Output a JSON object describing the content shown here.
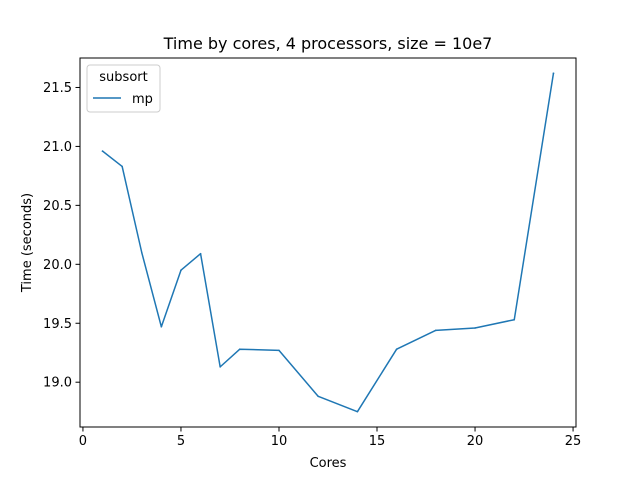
{
  "chart_data": {
    "type": "line",
    "title": "Time by cores, 4 processors, size = 10e7",
    "xlabel": "Cores",
    "ylabel": "Time (seconds)",
    "xlim": [
      -0.15,
      25.15
    ],
    "ylim": [
      18.62,
      21.75
    ],
    "xticks": [
      0,
      5,
      10,
      15,
      20,
      25
    ],
    "xtick_labels": [
      "0",
      "5",
      "10",
      "15",
      "20",
      "25"
    ],
    "yticks": [
      19.0,
      19.5,
      20.0,
      20.5,
      21.0,
      21.5
    ],
    "ytick_labels": [
      "19.0",
      "19.5",
      "20.0",
      "20.5",
      "21.0",
      "21.5"
    ],
    "grid": false,
    "legend": {
      "title": "subsort",
      "placement": "upper-left"
    },
    "series": [
      {
        "name": "mp",
        "color": "#1f77b4",
        "x": [
          1,
          2,
          3,
          4,
          5,
          6,
          7,
          8,
          10,
          12,
          14,
          16,
          18,
          20,
          22,
          24
        ],
        "y": [
          20.96,
          20.83,
          20.1,
          19.47,
          19.95,
          20.09,
          19.13,
          19.28,
          19.27,
          18.88,
          18.75,
          19.28,
          19.44,
          19.46,
          19.53,
          21.62
        ]
      }
    ]
  }
}
